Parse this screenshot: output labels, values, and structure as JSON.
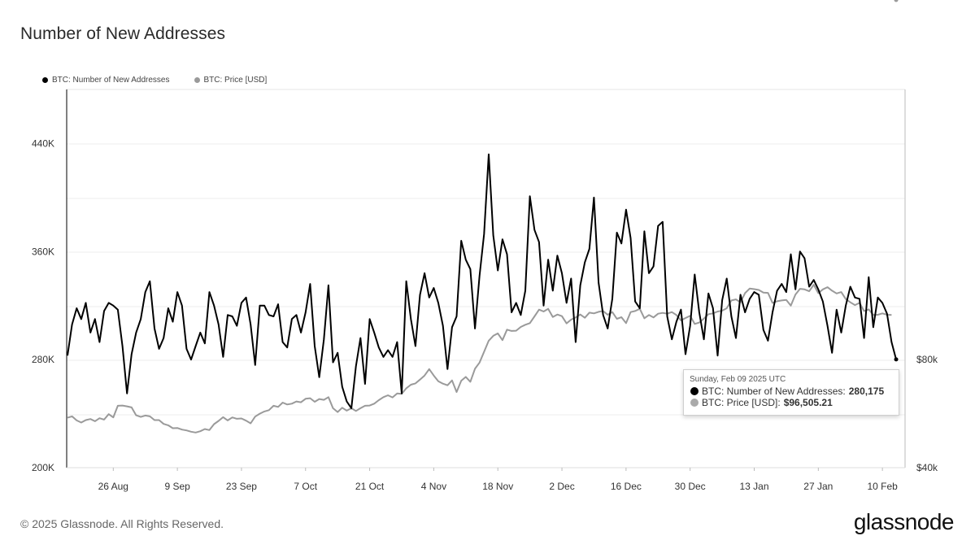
{
  "title": "Number of New Addresses",
  "legend": {
    "addresses": "BTC: Number of New Addresses",
    "price": "BTC: Price [USD]"
  },
  "colors": {
    "addresses": "#000000",
    "price": "#9a9a9a",
    "grid": "#eeeeee",
    "axis": "#000000"
  },
  "tooltip": {
    "date": "Sunday, Feb 09 2025 UTC",
    "addresses_label": "BTC: Number of New Addresses:",
    "addresses_value": "280,175",
    "price_label": "BTC: Price [USD]:",
    "price_value": "$96,505.21"
  },
  "footer": {
    "copyright": "© 2025 Glassnode. All Rights Reserved.",
    "brand": "glassnode"
  },
  "chart_data": {
    "type": "line",
    "title": "Number of New Addresses",
    "x_start": "2024-08-16",
    "x_end": "2025-02-09",
    "x_ticks": [
      {
        "label": "26 Aug",
        "day": 10
      },
      {
        "label": "9 Sep",
        "day": 24
      },
      {
        "label": "23 Sep",
        "day": 38
      },
      {
        "label": "7 Oct",
        "day": 52
      },
      {
        "label": "21 Oct",
        "day": 66
      },
      {
        "label": "4 Nov",
        "day": 80
      },
      {
        "label": "18 Nov",
        "day": 94
      },
      {
        "label": "2 Dec",
        "day": 108
      },
      {
        "label": "16 Dec",
        "day": 122
      },
      {
        "label": "30 Dec",
        "day": 136
      },
      {
        "label": "13 Jan",
        "day": 150
      },
      {
        "label": "27 Jan",
        "day": 164
      },
      {
        "label": "10 Feb",
        "day": 178
      }
    ],
    "y_left": {
      "min": 200000,
      "max": 480000,
      "ticks": [
        {
          "label": "200K",
          "value": 200000
        },
        {
          "label": "280K",
          "value": 280000
        },
        {
          "label": "360K",
          "value": 360000
        },
        {
          "label": "440K",
          "value": 440000
        }
      ]
    },
    "y_right": {
      "min": 40000,
      "max": 180000,
      "ticks": [
        {
          "label": "$40k",
          "value": 40000
        },
        {
          "label": "$80k",
          "value": 80000
        }
      ]
    },
    "series": [
      {
        "name": "BTC: Number of New Addresses",
        "axis": "left",
        "values": [
          283000,
          306000,
          318000,
          310000,
          322000,
          300000,
          310000,
          293000,
          316000,
          322000,
          320000,
          317000,
          290000,
          255000,
          284000,
          300000,
          310000,
          330000,
          338000,
          303000,
          288000,
          296000,
          318000,
          308000,
          330000,
          320000,
          288000,
          280000,
          290000,
          300000,
          292000,
          330000,
          320000,
          306000,
          282000,
          313000,
          312000,
          305000,
          322000,
          326000,
          306000,
          276000,
          320000,
          320000,
          313000,
          312000,
          321000,
          293000,
          289000,
          310000,
          313000,
          300000,
          315000,
          336000,
          290000,
          267000,
          295000,
          335000,
          278000,
          285000,
          260000,
          249000,
          244000,
          275000,
          296000,
          262000,
          310000,
          300000,
          289000,
          282000,
          287000,
          282000,
          293000,
          255000,
          338000,
          310000,
          290000,
          328000,
          344000,
          326000,
          333000,
          322000,
          305000,
          273000,
          304000,
          312000,
          368000,
          354000,
          347000,
          303000,
          342000,
          373000,
          432000,
          372000,
          346000,
          369000,
          358000,
          315000,
          322000,
          313000,
          331000,
          401000,
          376000,
          367000,
          320000,
          354000,
          331000,
          357000,
          344000,
          322000,
          340000,
          293000,
          335000,
          352000,
          362000,
          400000,
          337000,
          313000,
          303000,
          325000,
          374000,
          366000,
          391000,
          370000,
          323000,
          318000,
          375000,
          344000,
          349000,
          379000,
          382000,
          312000,
          295000,
          308000,
          317000,
          284000,
          305000,
          343000,
          315000,
          295000,
          329000,
          318000,
          283000,
          324000,
          340000,
          312000,
          296000,
          328000,
          315000,
          325000,
          330000,
          328000,
          302000,
          294000,
          315000,
          331000,
          336000,
          330000,
          358000,
          332000,
          360000,
          355000,
          334000,
          339000,
          332000,
          323000,
          305000,
          285000,
          317000,
          300000,
          320000,
          334000,
          326000,
          325000,
          296000,
          341000,
          304000,
          326000,
          322000,
          314000,
          293000,
          280175
        ]
      },
      {
        "name": "BTC: Price [USD]",
        "axis": "right",
        "values": [
          58500,
          59000,
          57500,
          56700,
          57600,
          58000,
          57200,
          58300,
          57800,
          59800,
          58600,
          62900,
          63000,
          62700,
          62300,
          59400,
          58800,
          59300,
          59000,
          57600,
          57600,
          56200,
          55700,
          54600,
          54700,
          54100,
          53800,
          53300,
          53000,
          53500,
          54300,
          53900,
          56100,
          57300,
          58700,
          57500,
          58600,
          58100,
          58200,
          57400,
          56400,
          58900,
          60000,
          60800,
          61300,
          62900,
          62500,
          64100,
          63400,
          63700,
          64500,
          64200,
          65500,
          65700,
          64400,
          65400,
          65100,
          66100,
          62000,
          60600,
          62200,
          61100,
          62000,
          61000,
          62000,
          62900,
          63000,
          63700,
          65000,
          66100,
          66800,
          66000,
          67500,
          67300,
          69400,
          70700,
          71200,
          72600,
          74100,
          76500,
          74100,
          72000,
          71100,
          70500,
          72300,
          68000,
          72200,
          73600,
          71800,
          76600,
          78900,
          82900,
          87000,
          88800,
          89700,
          87200,
          91100,
          90600,
          90700,
          92100,
          92900,
          93500,
          96000,
          98500,
          97800,
          98800,
          95800,
          96700,
          96100,
          93400,
          94800,
          95600,
          96700,
          95500,
          97400,
          97100,
          97700,
          98000,
          96600,
          97600,
          95100,
          95700,
          93500,
          97600,
          98000,
          98800,
          95300,
          96500,
          95600,
          97000,
          97300,
          97000,
          97600,
          96500,
          94500,
          95400,
          96200,
          93200,
          93700,
          95200,
          96800,
          97100,
          97800,
          98100,
          99000,
          101900,
          102300,
          101200,
          104600,
          106300,
          106100,
          105800,
          104800,
          104700,
          101000,
          101600,
          101900,
          102100,
          100000,
          104100,
          106200,
          106000,
          105300,
          107700,
          104600,
          106000,
          106800,
          105500,
          104500,
          105000,
          102400,
          101200,
          100200,
          101000,
          98000,
          98600,
          96500,
          96600,
          97100,
          96600,
          96500
        ]
      }
    ]
  }
}
